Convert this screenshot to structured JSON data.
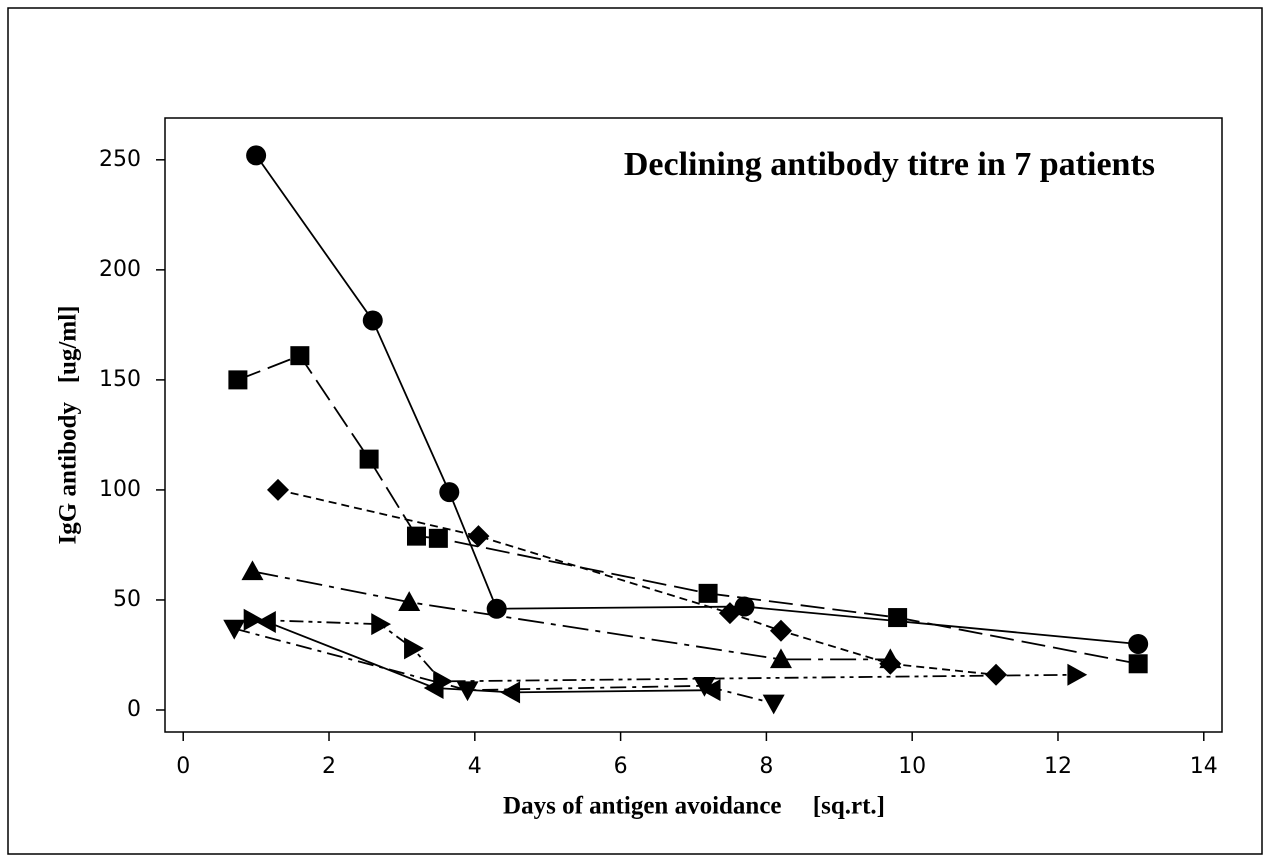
{
  "chart_data": {
    "type": "line",
    "title": "Declining antibody titre in 7 patients",
    "xlabel": "Days of antigen avoidance     [sq.rt.]",
    "ylabel": "IgG antibody   [ug/ml]",
    "xlim": [
      -0.25,
      14.25
    ],
    "xticks": [
      0,
      2,
      4,
      6,
      8,
      10,
      12,
      14
    ],
    "ylim": [
      -10,
      269
    ],
    "yticks": [
      0,
      50,
      100,
      150,
      200,
      250
    ],
    "grid": false,
    "series": [
      {
        "color": "#000000",
        "marker": "circle",
        "linestyle": "solid",
        "x": [
          1.0,
          2.6,
          3.65,
          4.3,
          7.7,
          13.1
        ],
        "values": [
          252,
          177,
          99,
          46,
          47,
          30
        ]
      },
      {
        "color": "#000000",
        "marker": "square",
        "linestyle": "long-dash",
        "x": [
          0.75,
          1.6,
          2.55,
          3.2,
          3.5,
          7.2,
          9.8,
          13.1
        ],
        "values": [
          150,
          161,
          114,
          79,
          78,
          53,
          42,
          21
        ]
      },
      {
        "color": "#000000",
        "marker": "diamond",
        "linestyle": "short-dash",
        "x": [
          1.3,
          4.05,
          7.5,
          8.2,
          9.7,
          11.15
        ],
        "values": [
          100,
          79,
          44,
          36,
          21,
          16
        ]
      },
      {
        "color": "#000000",
        "marker": "triangle-up",
        "linestyle": "long-dash-dot",
        "x": [
          0.95,
          3.1,
          8.2,
          9.7
        ],
        "values": [
          63,
          49,
          23,
          23
        ]
      },
      {
        "color": "#000000",
        "marker": "triangle-right",
        "linestyle": "dash-dot-dot",
        "x": [
          0.95,
          2.7,
          3.15,
          3.55,
          12.25
        ],
        "values": [
          41,
          39,
          28,
          13,
          16
        ]
      },
      {
        "color": "#000000",
        "marker": "triangle-left",
        "linestyle": "solid",
        "x": [
          1.15,
          3.45,
          4.5,
          7.25
        ],
        "values": [
          40,
          10,
          8,
          9
        ]
      },
      {
        "color": "#000000",
        "marker": "triangle-down",
        "linestyle": "dash-dot",
        "x": [
          0.7,
          3.9,
          7.15,
          8.1
        ],
        "values": [
          37,
          9,
          11,
          3
        ]
      }
    ]
  }
}
